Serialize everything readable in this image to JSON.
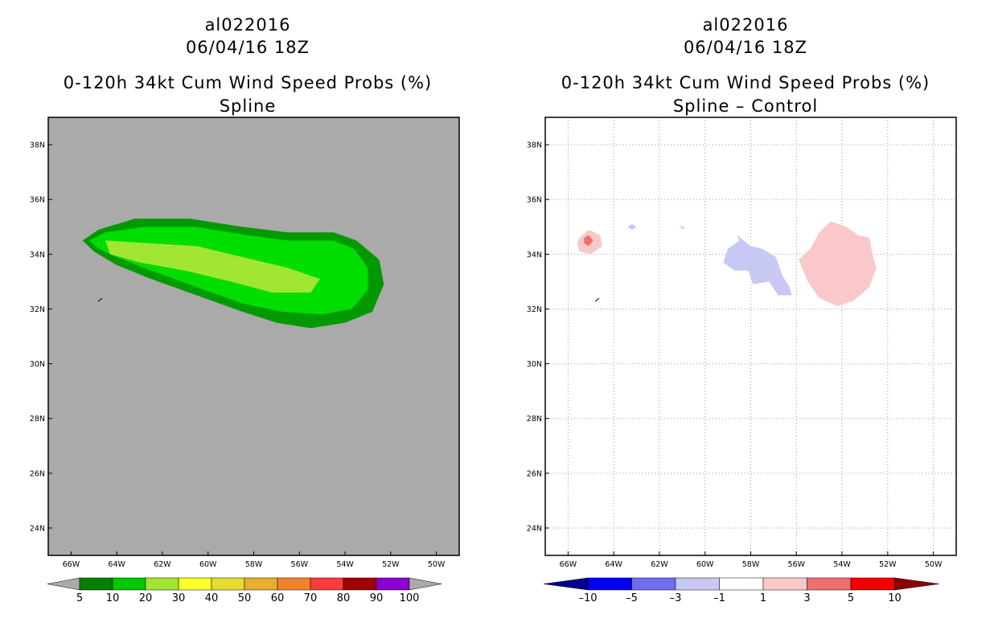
{
  "chart_data": [
    {
      "type": "heatmap",
      "storm_id": "al022016",
      "datetime": "06/04/16 18Z",
      "title": "0-120h 34kt Cum Wind Speed Probs (%)",
      "subtitle": "Spline",
      "x_ticks": [
        "66W",
        "64W",
        "62W",
        "60W",
        "58W",
        "56W",
        "54W",
        "52W",
        "50W"
      ],
      "y_ticks": [
        "38N",
        "36N",
        "34N",
        "32N",
        "30N",
        "28N",
        "26N",
        "24N"
      ],
      "xlim_lon": [
        -67.0,
        -49.0
      ],
      "ylim_lat": [
        23.0,
        39.0
      ],
      "grid": false,
      "colorbar": {
        "labels": [
          "5",
          "10",
          "20",
          "30",
          "40",
          "50",
          "60",
          "70",
          "80",
          "90",
          "100"
        ],
        "colors": [
          "#007f00",
          "#00c800",
          "#a0e632",
          "#ffff32",
          "#e6dc32",
          "#e6af2d",
          "#f08228",
          "#fa3c3c",
          "#a00000",
          "#8c00d2",
          "#aaaaaa"
        ]
      },
      "regions": [
        {
          "level": "5-10",
          "color": "#009900",
          "points": [
            [
              -65.5,
              34.5
            ],
            [
              -64.8,
              34.9
            ],
            [
              -63.2,
              35.3
            ],
            [
              -60.8,
              35.3
            ],
            [
              -58.5,
              35.0
            ],
            [
              -56.5,
              34.8
            ],
            [
              -54.5,
              34.8
            ],
            [
              -53.5,
              34.5
            ],
            [
              -52.5,
              33.8
            ],
            [
              -52.3,
              32.9
            ],
            [
              -52.8,
              31.9
            ],
            [
              -54.0,
              31.5
            ],
            [
              -55.5,
              31.3
            ],
            [
              -57.0,
              31.5
            ],
            [
              -58.5,
              31.9
            ],
            [
              -60.5,
              32.5
            ],
            [
              -62.5,
              33.1
            ],
            [
              -64.0,
              33.6
            ],
            [
              -65.0,
              34.1
            ]
          ]
        },
        {
          "level": "10-20",
          "color": "#00dd00",
          "points": [
            [
              -65.2,
              34.5
            ],
            [
              -64.5,
              34.8
            ],
            [
              -62.8,
              35.0
            ],
            [
              -60.5,
              35.0
            ],
            [
              -58.3,
              34.7
            ],
            [
              -56.5,
              34.5
            ],
            [
              -54.5,
              34.5
            ],
            [
              -53.6,
              34.2
            ],
            [
              -53.0,
              33.5
            ],
            [
              -53.0,
              32.7
            ],
            [
              -53.7,
              32.0
            ],
            [
              -55.0,
              31.8
            ],
            [
              -56.8,
              31.9
            ],
            [
              -58.5,
              32.2
            ],
            [
              -60.5,
              32.8
            ],
            [
              -62.5,
              33.4
            ],
            [
              -64.0,
              33.9
            ],
            [
              -64.8,
              34.2
            ]
          ]
        },
        {
          "level": "20-30",
          "color": "#a0e632",
          "points": [
            [
              -64.5,
              34.5
            ],
            [
              -62.5,
              34.4
            ],
            [
              -60.5,
              34.3
            ],
            [
              -58.5,
              33.9
            ],
            [
              -56.5,
              33.5
            ],
            [
              -55.1,
              33.1
            ],
            [
              -55.5,
              32.6
            ],
            [
              -57.2,
              32.6
            ],
            [
              -59.0,
              33.0
            ],
            [
              -61.0,
              33.4
            ],
            [
              -63.0,
              33.7
            ],
            [
              -64.3,
              34.0
            ]
          ]
        }
      ]
    },
    {
      "type": "heatmap",
      "storm_id": "al022016",
      "datetime": "06/04/16 18Z",
      "title": "0-120h 34kt Cum Wind Speed Probs (%)",
      "subtitle": "Spline – Control",
      "x_ticks": [
        "66W",
        "64W",
        "62W",
        "60W",
        "58W",
        "56W",
        "54W",
        "52W",
        "50W"
      ],
      "y_ticks": [
        "38N",
        "36N",
        "34N",
        "32N",
        "30N",
        "28N",
        "26N",
        "24N"
      ],
      "xlim_lon": [
        -67.0,
        -49.0
      ],
      "ylim_lat": [
        23.0,
        39.0
      ],
      "grid": true,
      "colorbar": {
        "labels": [
          "–10",
          "–5",
          "–3",
          "–1",
          "1",
          "3",
          "5",
          "10"
        ],
        "colors": [
          "#00008c",
          "#0000f0",
          "#6e6ef0",
          "#c8c8f5",
          "#ffffff",
          "#fac8c8",
          "#f06e6e",
          "#f00000",
          "#8c0000"
        ]
      },
      "regions": [
        {
          "level": "1 to 3",
          "color": "#fac8c8",
          "points": [
            [
              -65.5,
              34.6
            ],
            [
              -65.1,
              34.9
            ],
            [
              -64.6,
              34.7
            ],
            [
              -64.5,
              34.3
            ],
            [
              -65.0,
              34.0
            ],
            [
              -65.5,
              34.1
            ],
            [
              -65.6,
              34.4
            ]
          ]
        },
        {
          "level": "3 to 5",
          "color": "#f06e6e",
          "points": [
            [
              -65.3,
              34.6
            ],
            [
              -65.1,
              34.7
            ],
            [
              -64.9,
              34.5
            ],
            [
              -65.1,
              34.3
            ],
            [
              -65.3,
              34.4
            ]
          ]
        },
        {
          "level": "-3 to -1",
          "color": "#c8c8f5",
          "points": [
            [
              -63.4,
              35.0
            ],
            [
              -63.2,
              35.1
            ],
            [
              -63.0,
              35.0
            ],
            [
              -63.2,
              34.9
            ]
          ]
        },
        {
          "level": "1 to 3",
          "color": "#fac8c8",
          "points": [
            [
              -61.1,
              35.0
            ],
            [
              -61.0,
              35.05
            ],
            [
              -60.9,
              34.95
            ],
            [
              -61.0,
              34.9
            ]
          ]
        },
        {
          "level": "-3 to -1",
          "color": "#c8c8f5",
          "points": [
            [
              -58.6,
              34.7
            ],
            [
              -58.0,
              34.3
            ],
            [
              -57.5,
              34.2
            ],
            [
              -56.9,
              33.9
            ],
            [
              -56.6,
              33.2
            ],
            [
              -56.3,
              32.8
            ],
            [
              -56.2,
              32.5
            ],
            [
              -56.8,
              32.5
            ],
            [
              -57.2,
              33.0
            ],
            [
              -57.9,
              32.9
            ],
            [
              -58.1,
              33.4
            ],
            [
              -58.7,
              33.4
            ],
            [
              -59.2,
              33.7
            ],
            [
              -59.0,
              34.2
            ],
            [
              -58.5,
              34.5
            ]
          ]
        },
        {
          "level": "1 to 3",
          "color": "#fac8c8",
          "points": [
            [
              -54.5,
              35.2
            ],
            [
              -53.8,
              35.0
            ],
            [
              -53.3,
              34.7
            ],
            [
              -52.8,
              34.6
            ],
            [
              -52.7,
              34.1
            ],
            [
              -52.5,
              33.5
            ],
            [
              -52.8,
              32.8
            ],
            [
              -53.5,
              32.3
            ],
            [
              -54.2,
              32.1
            ],
            [
              -55.0,
              32.4
            ],
            [
              -55.5,
              33.0
            ],
            [
              -55.9,
              33.8
            ],
            [
              -55.4,
              34.2
            ],
            [
              -55.0,
              34.8
            ]
          ]
        }
      ]
    }
  ]
}
